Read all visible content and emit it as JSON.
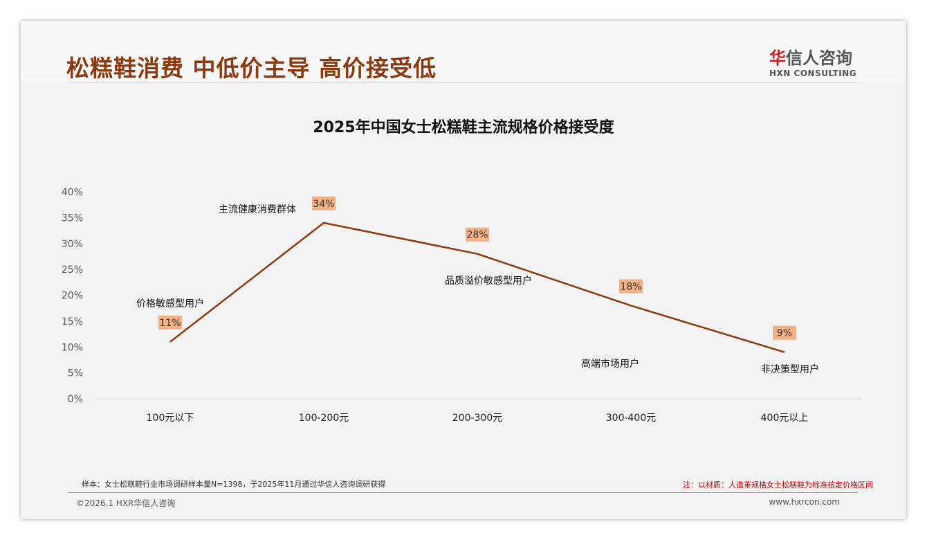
{
  "header": {
    "title": "松糕鞋消费 中低价主导 高价接受低",
    "logo_cn_red": "华",
    "logo_cn": "信人咨询",
    "logo_en": "HXN CONSULTING"
  },
  "chart_data": {
    "type": "line",
    "title": "2025年中国女士松糕鞋主流规格价格接受度",
    "categories": [
      "100元以下",
      "100-200元",
      "200-300元",
      "300-400元",
      "400元以上"
    ],
    "values": [
      11,
      34,
      28,
      18,
      9
    ],
    "data_labels": [
      "11%",
      "34%",
      "28%",
      "18%",
      "9%"
    ],
    "y_ticks": [
      "0%",
      "5%",
      "10%",
      "15%",
      "20%",
      "25%",
      "30%",
      "35%",
      "40%"
    ],
    "ylim": [
      0,
      40
    ],
    "annotations": [
      "价格敏感型用户",
      "主流健康消费群体",
      "品质溢价敏感型用户",
      "高端市场用户",
      "非决策型用户"
    ],
    "colors": {
      "line": "#8b3a0f",
      "label_bg": "#f4b183"
    }
  },
  "footer": {
    "sample": "样本：女士松糕鞋行业市场调研样本量N=1398，于2025年11月通过华信人咨询调研获得",
    "note": "注：以材质：人造革规格女士松糕鞋为标准核定价格区间",
    "copyright": "©2026.1 HXR华信人咨询",
    "url": "www.hxrcon.com"
  }
}
